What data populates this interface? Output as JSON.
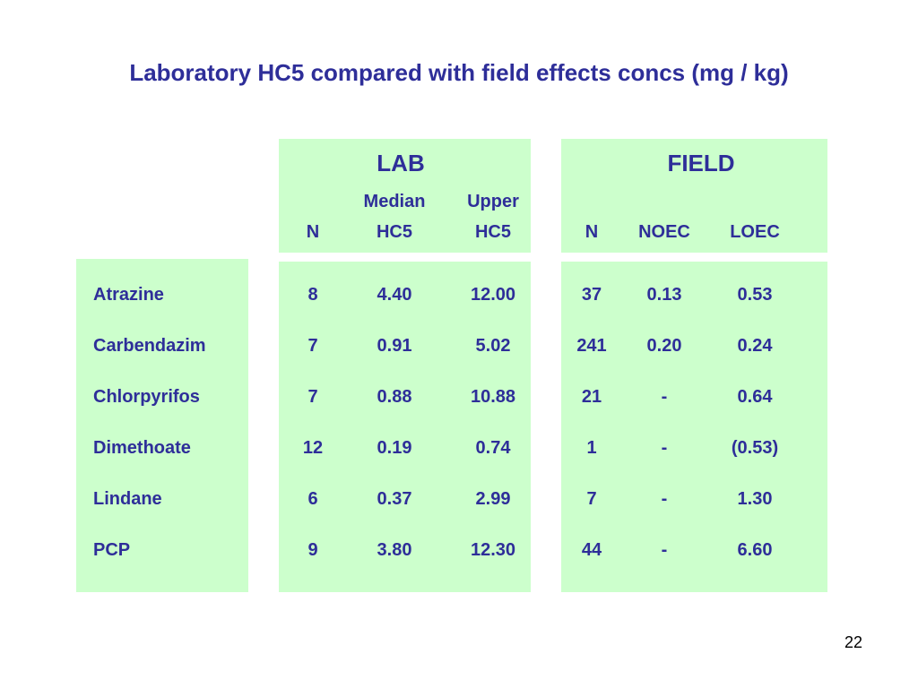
{
  "title": "Laboratory HC5 compared with field effects concs (mg / kg)",
  "page_number": "22",
  "lab": {
    "heading": "LAB",
    "columns": [
      {
        "line1": "",
        "line2": "N"
      },
      {
        "line1": "Median",
        "line2": "HC5"
      },
      {
        "line1": "Upper",
        "line2": "HC5"
      }
    ]
  },
  "field": {
    "heading": "FIELD",
    "columns": [
      {
        "line1": "",
        "line2": "N"
      },
      {
        "line1": "",
        "line2": "NOEC"
      },
      {
        "line1": "",
        "line2": "LOEC"
      }
    ]
  },
  "rows": [
    {
      "name": "Atrazine",
      "lab": [
        "8",
        "4.40",
        "12.00"
      ],
      "field": [
        "37",
        "0.13",
        "0.53"
      ]
    },
    {
      "name": "Carbendazim",
      "lab": [
        "7",
        "0.91",
        "5.02"
      ],
      "field": [
        "241",
        "0.20",
        "0.24"
      ]
    },
    {
      "name": "Chlorpyrifos",
      "lab": [
        "7",
        "0.88",
        "10.88"
      ],
      "field": [
        "21",
        "-",
        "0.64"
      ]
    },
    {
      "name": "Dimethoate",
      "lab": [
        "12",
        "0.19",
        "0.74"
      ],
      "field": [
        "1",
        "-",
        "(0.53)"
      ]
    },
    {
      "name": "Lindane",
      "lab": [
        "6",
        "0.37",
        "2.99"
      ],
      "field": [
        "7",
        "-",
        "1.30"
      ]
    },
    {
      "name": "PCP",
      "lab": [
        "9",
        "3.80",
        "12.30"
      ],
      "field": [
        "44",
        "-",
        "6.60"
      ]
    }
  ]
}
